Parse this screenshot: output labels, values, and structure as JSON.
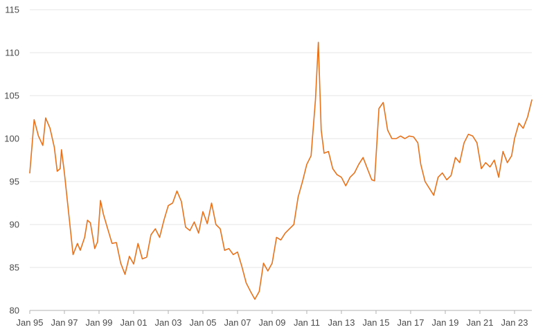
{
  "chart_data": {
    "type": "line",
    "title": "",
    "xlabel": "",
    "ylabel": "",
    "ylim": [
      80,
      115
    ],
    "y_ticks": [
      80,
      85,
      90,
      95,
      100,
      105,
      110,
      115
    ],
    "x_ticks": [
      "Jan 95",
      "Jan 97",
      "Jan 99",
      "Jan 01",
      "Jan 03",
      "Jan 05",
      "Jan 07",
      "Jan 09",
      "Jan 11",
      "Jan 13",
      "Jan 15",
      "Jan 17",
      "Jan 19",
      "Jan 21",
      "Jan 23"
    ],
    "x_range": [
      "Jan 95",
      "Jan 24"
    ],
    "grid": "horizontal",
    "legend": "none",
    "line_color": "#e8711a",
    "series": [
      {
        "name": "",
        "points": [
          [
            "Jan 95",
            96
          ],
          [
            "Apr 95",
            102.2
          ],
          [
            "Jul 95",
            100.3
          ],
          [
            "Oct 95",
            99.2
          ],
          [
            "Dec 95",
            102.4
          ],
          [
            "Mar 96",
            101.2
          ],
          [
            "Jun 96",
            99
          ],
          [
            "Aug 96",
            96.2
          ],
          [
            "Oct 96",
            96.5
          ],
          [
            "Nov 96",
            98.7
          ],
          [
            "Jan 97",
            96
          ],
          [
            "Apr 97",
            91.2
          ],
          [
            "Jul 97",
            86.5
          ],
          [
            "Oct 97",
            87.8
          ],
          [
            "Dec 97",
            87
          ],
          [
            "Mar 98",
            88.5
          ],
          [
            "May 98",
            90.5
          ],
          [
            "Jul 98",
            90.2
          ],
          [
            "Oct 98",
            87.2
          ],
          [
            "Dec 98",
            88
          ],
          [
            "Feb 99",
            92.8
          ],
          [
            "Apr 99",
            91.2
          ],
          [
            "Jul 99",
            89.5
          ],
          [
            "Oct 99",
            87.8
          ],
          [
            "Jan 00",
            87.9
          ],
          [
            "Apr 00",
            85.5
          ],
          [
            "Jul 00",
            84.2
          ],
          [
            "Oct 00",
            86.3
          ],
          [
            "Jan 01",
            85.4
          ],
          [
            "Apr 01",
            87.8
          ],
          [
            "Jul 01",
            86
          ],
          [
            "Oct 01",
            86.2
          ],
          [
            "Jan 02",
            88.8
          ],
          [
            "Apr 02",
            89.5
          ],
          [
            "Jul 02",
            88.5
          ],
          [
            "Oct 02",
            90.5
          ],
          [
            "Jan 03",
            92.2
          ],
          [
            "Apr 03",
            92.5
          ],
          [
            "Jul 03",
            93.9
          ],
          [
            "Oct 03",
            92.7
          ],
          [
            "Jan 04",
            89.7
          ],
          [
            "Apr 04",
            89.3
          ],
          [
            "Jul 04",
            90.3
          ],
          [
            "Oct 04",
            89
          ],
          [
            "Jan 05",
            91.5
          ],
          [
            "Apr 05",
            90.1
          ],
          [
            "Jul 05",
            92.5
          ],
          [
            "Oct 05",
            90
          ],
          [
            "Jan 06",
            89.5
          ],
          [
            "Apr 06",
            87
          ],
          [
            "Jul 06",
            87.2
          ],
          [
            "Oct 06",
            86.5
          ],
          [
            "Jan 07",
            86.8
          ],
          [
            "Apr 07",
            85.1
          ],
          [
            "Jul 07",
            83.2
          ],
          [
            "Oct 07",
            82.2
          ],
          [
            "Jan 08",
            81.3
          ],
          [
            "Apr 08",
            82.2
          ],
          [
            "Jul 08",
            85.5
          ],
          [
            "Oct 08",
            84.6
          ],
          [
            "Jan 09",
            85.5
          ],
          [
            "Apr 09",
            88.5
          ],
          [
            "Jul 09",
            88.2
          ],
          [
            "Oct 09",
            89
          ],
          [
            "Jan 10",
            89.5
          ],
          [
            "Apr 10",
            90
          ],
          [
            "Jul 10",
            93.2
          ],
          [
            "Oct 10",
            95
          ],
          [
            "Jan 11",
            97
          ],
          [
            "Apr 11",
            98
          ],
          [
            "Jul 11",
            104.5
          ],
          [
            "Sep 11",
            111.2
          ],
          [
            "Nov 11",
            101
          ],
          [
            "Jan 12",
            98.3
          ],
          [
            "Apr 12",
            98.5
          ],
          [
            "Jul 12",
            96.5
          ],
          [
            "Oct 12",
            95.8
          ],
          [
            "Jan 13",
            95.5
          ],
          [
            "Apr 13",
            94.5
          ],
          [
            "Jul 13",
            95.5
          ],
          [
            "Oct 13",
            96
          ],
          [
            "Jan 14",
            97
          ],
          [
            "Apr 14",
            97.8
          ],
          [
            "Jul 14",
            96.5
          ],
          [
            "Oct 14",
            95.2
          ],
          [
            "Dec 14",
            95.1
          ],
          [
            "Mar 15",
            103.5
          ],
          [
            "Jun 15",
            104.2
          ],
          [
            "Sep 15",
            101
          ],
          [
            "Dec 15",
            100
          ],
          [
            "Mar 16",
            100
          ],
          [
            "Jun 16",
            100.3
          ],
          [
            "Sep 16",
            100
          ],
          [
            "Dec 16",
            100.3
          ],
          [
            "Mar 17",
            100.2
          ],
          [
            "Jun 17",
            99.5
          ],
          [
            "Aug 17",
            97
          ],
          [
            "Nov 17",
            95
          ],
          [
            "Feb 18",
            94.2
          ],
          [
            "May 18",
            93.4
          ],
          [
            "Aug 18",
            95.5
          ],
          [
            "Nov 18",
            96
          ],
          [
            "Feb 19",
            95.2
          ],
          [
            "May 19",
            95.7
          ],
          [
            "Aug 19",
            97.8
          ],
          [
            "Nov 19",
            97.2
          ],
          [
            "Feb 20",
            99.5
          ],
          [
            "May 20",
            100.5
          ],
          [
            "Aug 20",
            100.3
          ],
          [
            "Nov 20",
            99.5
          ],
          [
            "Feb 21",
            96.5
          ],
          [
            "May 21",
            97.2
          ],
          [
            "Aug 21",
            96.7
          ],
          [
            "Nov 21",
            97.5
          ],
          [
            "Feb 22",
            95.5
          ],
          [
            "May 22",
            98.5
          ],
          [
            "Aug 22",
            97.2
          ],
          [
            "Nov 22",
            98
          ],
          [
            "Jan 23",
            100
          ],
          [
            "Apr 23",
            101.8
          ],
          [
            "Jul 23",
            101.2
          ],
          [
            "Oct 23",
            102.5
          ],
          [
            "Jan 24",
            104.5
          ]
        ]
      }
    ]
  }
}
